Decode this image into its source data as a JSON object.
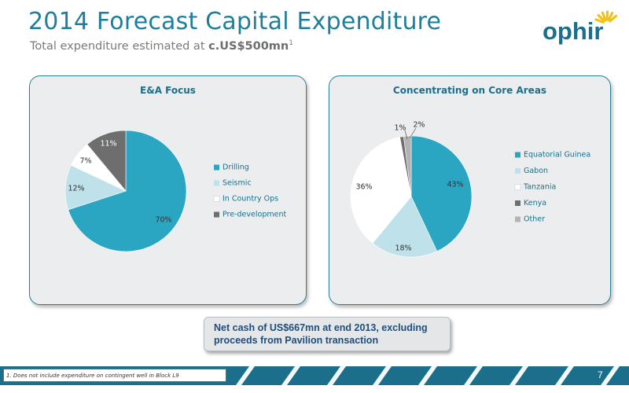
{
  "header": {
    "title": "2014 Forecast Capital Expenditure",
    "subtitle_prefix": "Total expenditure estimated at ",
    "subtitle_amount": "c.US$500mn",
    "subtitle_footnote_ref": "1"
  },
  "logo": {
    "text": "ophir",
    "color": "#1b6f8a",
    "sun_color": "#f2c21b"
  },
  "chart_data": [
    {
      "type": "pie",
      "title": "E&A Focus",
      "categories": [
        "Drilling",
        "Seismic",
        "In Country Ops",
        "Pre-development"
      ],
      "values": [
        70,
        12,
        7,
        11
      ],
      "labels": [
        "70%",
        "12%",
        "7%",
        "11%"
      ],
      "colors": [
        "#2aa5c2",
        "#bfe1e9",
        "#ffffff",
        "#6e6e6e"
      ],
      "label_colors": [
        "#333333",
        "#333333",
        "#333333",
        "#ffffff"
      ],
      "legend_position": "right"
    },
    {
      "type": "pie",
      "title": "Concentrating on Core Areas",
      "categories": [
        "Equatorial Guinea",
        "Gabon",
        "Tanzania",
        "Kenya",
        "Other"
      ],
      "values": [
        43,
        18,
        36,
        1,
        2
      ],
      "labels": [
        "43%",
        "18%",
        "36%",
        "1%",
        "2%"
      ],
      "colors": [
        "#2aa5c2",
        "#bfe1e9",
        "#ffffff",
        "#6e6e6e",
        "#b3b3b3"
      ],
      "label_colors": [
        "#333333",
        "#333333",
        "#333333",
        "#333333",
        "#333333"
      ],
      "legend_position": "right"
    }
  ],
  "callout": {
    "text": "Net cash of US$667mn at end 2013, excluding proceeds from Pavilion transaction"
  },
  "footer": {
    "footnote": "1. Does not include expenditure on contingent well in Block L9",
    "page_number": "7",
    "band_color": "#1b6f8a"
  }
}
